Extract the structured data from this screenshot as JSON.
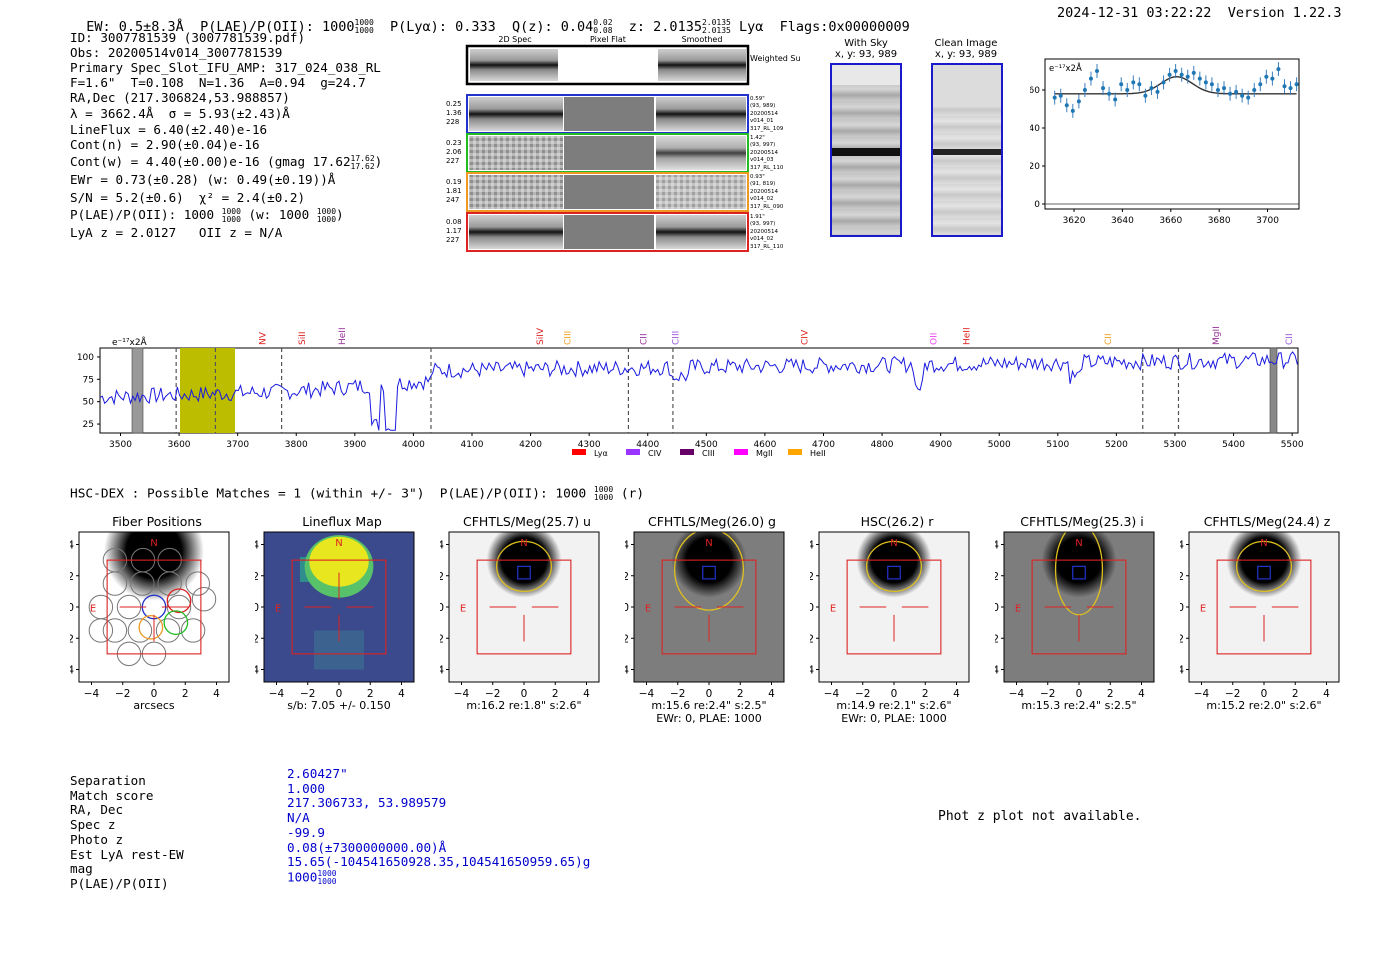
{
  "header": {
    "ew": "EW: 0.5±8.3Å",
    "plae": "P(LAE)/P(OII): 1000",
    "plae_frac_top": "1000",
    "plae_frac_bot": "1000",
    "plya": "P(Lyα): 0.333",
    "qz": "Q(z): 0.04",
    "qz_top": "0.02",
    "qz_bot": "0.08",
    "z": "z: 2.0135",
    "z_top": "2.0135",
    "z_bot": "2.0135",
    "z_suffix": "Lyα",
    "flags": "Flags:0x00000009",
    "timestamp": "2024-12-31 03:22:22",
    "version": "Version 1.22.3"
  },
  "info": {
    "id": "ID: 3007781539 (3007781539.pdf)",
    "obs": "Obs: 20200514v014_3007781539",
    "primary": "Primary Spec_Slot_IFU_AMP: 317_024_038_RL",
    "params": "F=1.6\"  T=0.108  N=1.36  A=0.94  g=24.7",
    "radec": "RA,Dec (217.306824,53.988857)",
    "lambda": "λ = 3662.4Å  σ = 5.93(±2.43)Å",
    "lineflux": "LineFlux = 6.40(±2.40)e-16",
    "contn": "Cont(n) = 2.90(±0.04)e-16",
    "contw": "Cont(w) = 4.40(±0.00)e-16 (gmag 17.62",
    "contw_top": "17.62",
    "contw_bot": "17.62",
    "contw_end": ")",
    "ewr": "EWr = 0.73(±0.28) (w: 0.49(±0.19))Å",
    "sn": "S/N = 5.2(±0.6)  χ² = 2.4(±0.2)",
    "plae": "P(LAE)/P(OII): 1000",
    "plae_top": "1000",
    "plae_bot": "1000",
    "plae_w": "(w: 1000",
    "plae_w_top": "1000",
    "plae_w_bot": "1000",
    "plae_w_end": ")",
    "lya": "LyA z = 2.0127   OII z = N/A"
  },
  "cutouts": {
    "col_2d": "2D Spec",
    "col_flat": "Pixel Flat",
    "col_smooth": "Smoothed",
    "weighted": "Weighted Sum",
    "rows": [
      {
        "vals": [
          "0.25",
          "1.36",
          "228"
        ],
        "meta": [
          "0.59\"",
          "(93, 989)",
          "20200514",
          "v014_01",
          "317_RL_109"
        ],
        "color": "#2233cc"
      },
      {
        "vals": [
          "0.23",
          "2.06",
          "227"
        ],
        "meta": [
          "1.42\"",
          "(93, 997)",
          "20200514",
          "v014_03",
          "317_RL_110"
        ],
        "color": "#22bb22"
      },
      {
        "vals": [
          "0.19",
          "1.81",
          "247"
        ],
        "meta": [
          "0.93\"",
          "(91, 819)",
          "20200514",
          "v014_02",
          "317_RL_090"
        ],
        "color": "#ee9922"
      },
      {
        "vals": [
          "0.08",
          "1.17",
          "227"
        ],
        "meta": [
          "1.91\"",
          "(93, 997)",
          "20200514",
          "v014_02",
          "317_RL_110"
        ],
        "color": "#dd2222"
      }
    ],
    "with_sky": "With Sky",
    "with_sky_xy": "x, y: 93, 989",
    "clean": "Clean Image",
    "clean_xy": "x, y: 93, 989"
  },
  "zoom_plot": {
    "unit": "e⁻¹⁷x2Å",
    "xticks": [
      "3620",
      "3640",
      "3660",
      "3680",
      "3700"
    ],
    "yticks": [
      "60",
      "40",
      "20",
      "0"
    ],
    "points": [
      56,
      57,
      52,
      49,
      54,
      60,
      66,
      70,
      61,
      58,
      55,
      63,
      60,
      64,
      63,
      57,
      61,
      59,
      64,
      68,
      70,
      68,
      67,
      69,
      66,
      64,
      63,
      60,
      61,
      58,
      59,
      57,
      56,
      60,
      63,
      67,
      66,
      71,
      62,
      61,
      63
    ]
  },
  "spectrum": {
    "unit": "e⁻¹⁷x2Å",
    "yticks": [
      "100",
      "75",
      "50",
      "25"
    ],
    "xticks": [
      "3500",
      "3600",
      "3700",
      "3800",
      "3900",
      "4000",
      "4100",
      "4200",
      "4300",
      "4400",
      "4500",
      "4600",
      "4700",
      "4800",
      "4900",
      "5000",
      "5100",
      "5200",
      "5300",
      "5400",
      "5500"
    ],
    "lines": [
      {
        "label": "NV",
        "color": "#dd2222",
        "w": 3742
      },
      {
        "label": "SiII",
        "color": "#dd2222",
        "w": 3810
      },
      {
        "label": "HeII",
        "color": "#993399",
        "w": 3878
      },
      {
        "label": "SiIV",
        "color": "#dd2222",
        "w": 4216
      },
      {
        "label": "CIII",
        "color": "#f0a020",
        "w": 4263
      },
      {
        "label": "CII",
        "color": "#993399",
        "w": 4393
      },
      {
        "label": "CIII",
        "color": "#9955dd",
        "w": 4447
      },
      {
        "label": "CIV",
        "color": "#dd2222",
        "w": 4668
      },
      {
        "label": "OII",
        "color": "#ee44ee",
        "w": 4888
      },
      {
        "label": "HeII",
        "color": "#dd2222",
        "w": 4944
      },
      {
        "label": "CII",
        "color": "#f0a020",
        "w": 5186
      },
      {
        "label": "MgII",
        "color": "#993399",
        "w": 5370
      },
      {
        "label": "CII",
        "color": "#9955dd",
        "w": 5495
      }
    ],
    "legend": [
      {
        "label": "Lyα",
        "color": "#ff0000"
      },
      {
        "label": "CIV",
        "color": "#9933ff"
      },
      {
        "label": "CIII",
        "color": "#660066"
      },
      {
        "label": "MgII",
        "color": "#ff00ff"
      },
      {
        "label": "HeII",
        "color": "#ffa500"
      }
    ]
  },
  "hsc": {
    "title": "HSC-DEX : Possible Matches = 1 (within +/- 3\")  P(LAE)/P(OII): 1000",
    "title_top": "1000",
    "title_bot": "1000",
    "title_end": "(r)"
  },
  "panels": [
    {
      "title": "Fiber Positions",
      "cap1": "arcsecs",
      "cap2": ""
    },
    {
      "title": "Lineflux Map",
      "cap1": "s/b: 7.05 +/- 0.150",
      "cap2": ""
    },
    {
      "title": "CFHTLS/Meg(25.7) u",
      "cap1": "m:16.2  re:1.8\"  s:2.6\"",
      "cap2": ""
    },
    {
      "title": "CFHTLS/Meg(26.0) g",
      "cap1": "m:15.6  re:2.4\"  s:2.5\"",
      "cap2": "EWr: 0, PLAE: 1000"
    },
    {
      "title": "HSC(26.2) r",
      "cap1": "m:14.9  re:2.1\"  s:2.6\"",
      "cap2": "EWr: 0, PLAE: 1000"
    },
    {
      "title": "CFHTLS/Meg(25.3) i",
      "cap1": "m:15.3  re:2.4\"  s:2.5\"",
      "cap2": ""
    },
    {
      "title": "CFHTLS/Meg(24.4) z",
      "cap1": "m:15.2  re:2.0\"  s:2.6\"",
      "cap2": ""
    }
  ],
  "panel_axes": {
    "yticks": [
      "4",
      "2",
      "0",
      "−2",
      "−4"
    ],
    "xticks": [
      "−4",
      "−2",
      "0",
      "2",
      "4"
    ],
    "n": "N",
    "e": "E"
  },
  "match": {
    "labels": [
      "Separation",
      "Match score",
      "RA, Dec",
      "Spec z",
      "Photo z",
      "Est LyA rest-EW",
      "mag",
      "P(LAE)/P(OII)"
    ],
    "values": [
      "2.60427\"",
      "1.000",
      "217.306733, 53.989579",
      "N/A",
      "-99.9",
      "0.08(±7300000000.00)Å",
      "15.65(-104541650928.35,104541650959.65)g",
      "1000"
    ],
    "plae_top": "1000",
    "plae_bot": "1000",
    "photz_msg": "Phot z plot not available."
  }
}
